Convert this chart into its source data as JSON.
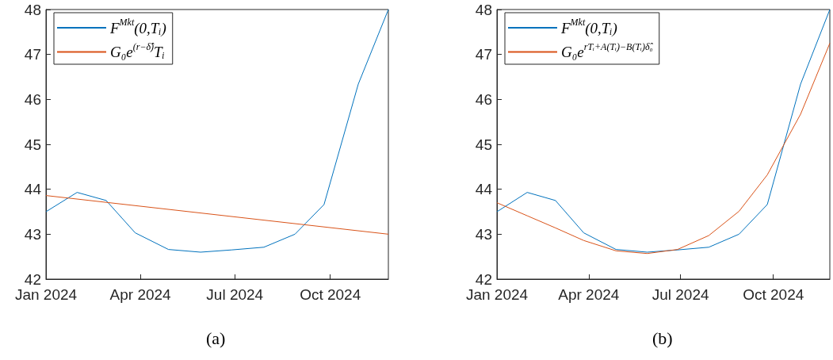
{
  "chart_data": [
    {
      "type": "line",
      "annotations": [
        "(a)"
      ],
      "legend": "top left",
      "grid": false,
      "xlim": [
        "2024-01-01",
        "2024-11-26"
      ],
      "ylim": [
        42,
        48
      ],
      "yticks": [
        42,
        43,
        44,
        45,
        46,
        47,
        48
      ],
      "xticks": [
        {
          "value": "2024-01-01",
          "label": "Jan 2024"
        },
        {
          "value": "2024-04-01",
          "label": "Apr 2024"
        },
        {
          "value": "2024-07-01",
          "label": "Jul 2024"
        },
        {
          "value": "2024-10-01",
          "label": "Oct 2024"
        }
      ],
      "series": [
        {
          "name": "F$^{Mkt}$(0,Tᵢ)",
          "color": "#0072bd",
          "x": [
            "2024-01-01",
            "2024-01-31",
            "2024-02-28",
            "2024-03-27",
            "2024-04-28",
            "2024-05-29",
            "2024-06-28",
            "2024-07-29",
            "2024-08-28",
            "2024-09-25",
            "2024-10-28",
            "2024-11-26"
          ],
          "values": [
            43.5,
            43.93,
            43.75,
            43.03,
            42.66,
            42.6,
            42.65,
            42.71,
            43.0,
            43.66,
            46.34,
            48.0
          ]
        },
        {
          "name": "G₀e$^{(r−δ̂)}$Tᵢ",
          "color": "#d95319",
          "x": [
            "2024-01-01",
            "2024-11-26"
          ],
          "values": [
            43.86,
            43.0
          ]
        }
      ]
    },
    {
      "type": "line",
      "annotations": [
        "(b)"
      ],
      "legend": "top left",
      "grid": false,
      "xlim": [
        "2024-01-01",
        "2024-11-26"
      ],
      "ylim": [
        42,
        48
      ],
      "yticks": [
        42,
        43,
        44,
        45,
        46,
        47,
        48
      ],
      "xticks": [
        {
          "value": "2024-01-01",
          "label": "Jan 2024"
        },
        {
          "value": "2024-04-01",
          "label": "Apr 2024"
        },
        {
          "value": "2024-07-01",
          "label": "Jul 2024"
        },
        {
          "value": "2024-10-01",
          "label": "Oct 2024"
        }
      ],
      "series": [
        {
          "name": "F$^{Mkt}$(0,Tᵢ)",
          "color": "#0072bd",
          "x": [
            "2024-01-01",
            "2024-01-31",
            "2024-02-28",
            "2024-03-27",
            "2024-04-28",
            "2024-05-29",
            "2024-06-28",
            "2024-07-29",
            "2024-08-28",
            "2024-09-25",
            "2024-10-28",
            "2024-11-26"
          ],
          "values": [
            43.5,
            43.93,
            43.75,
            43.03,
            42.66,
            42.6,
            42.65,
            42.71,
            43.0,
            43.66,
            46.34,
            48.0
          ]
        },
        {
          "name": "G₀e$^{rTᵢ+A(Tᵢ)−B(Tᵢ)δ̂₀}$",
          "color": "#d95319",
          "x": [
            "2024-01-01",
            "2024-01-31",
            "2024-02-28",
            "2024-03-27",
            "2024-04-28",
            "2024-05-29",
            "2024-06-28",
            "2024-07-29",
            "2024-08-28",
            "2024-09-25",
            "2024-10-28",
            "2024-11-26"
          ],
          "values": [
            43.7,
            43.41,
            43.14,
            42.86,
            42.63,
            42.57,
            42.66,
            42.97,
            43.51,
            44.32,
            45.67,
            47.25
          ]
        }
      ]
    }
  ]
}
